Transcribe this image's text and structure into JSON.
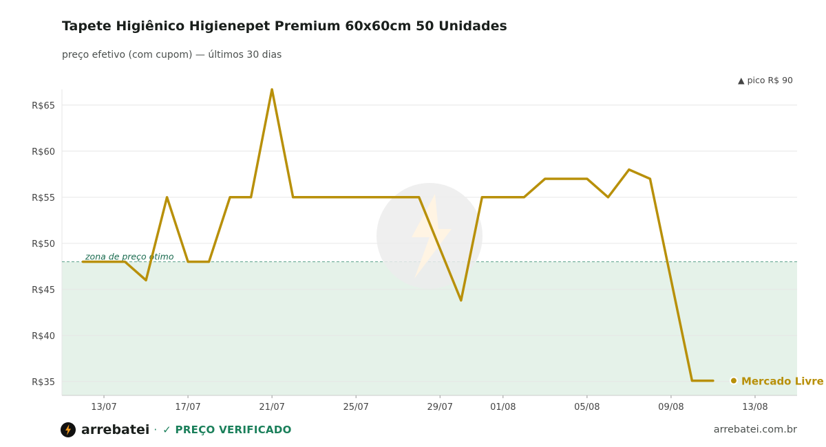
{
  "header": {
    "title": "Tapete Higiênico Higienepet Premium 60x60cm 50 Unidades",
    "subtitle": "preço efetivo (com cupom) — últimos 30 dias"
  },
  "peak_note": "▲ pico R$ 90",
  "footer": {
    "brand": "arrebatei",
    "separator": "·",
    "verified": "✓ PREÇO VERIFICADO",
    "domain": "arrebatei.com.br"
  },
  "colors": {
    "line": "#b8900a",
    "zone_fill": "#e5f2e9",
    "zone_line": "#5aa08a",
    "zone_text": "#1a6b4f",
    "verified": "#1a7f5a"
  },
  "chart_data": {
    "type": "line",
    "title": "Tapete Higiênico Higienepet Premium 60x60cm 50 Unidades",
    "subtitle": "preço efetivo (com cupom) — últimos 30 dias",
    "xlabel": "",
    "ylabel": "",
    "x_ticks": [
      "13/07",
      "17/07",
      "21/07",
      "25/07",
      "29/07",
      "01/08",
      "05/08",
      "09/08",
      "13/08"
    ],
    "x_tick_dates": [
      "2025-07-13",
      "2025-07-17",
      "2025-07-21",
      "2025-07-25",
      "2025-07-29",
      "2025-08-01",
      "2025-08-05",
      "2025-08-09",
      "2025-08-13"
    ],
    "xlim": [
      "2025-07-11",
      "2025-08-15"
    ],
    "y_ticks": [
      35,
      40,
      45,
      50,
      55,
      60,
      65
    ],
    "y_tick_labels": [
      "R$35",
      "R$40",
      "R$45",
      "R$50",
      "R$55",
      "R$60",
      "R$65"
    ],
    "ylim": [
      33.5,
      66.7
    ],
    "grid": true,
    "zone": {
      "label": "zona de preço ótimo",
      "threshold": 48
    },
    "series": [
      {
        "name": "Mercado Livre",
        "points": [
          [
            "2025-07-12",
            48
          ],
          [
            "2025-07-13",
            48
          ],
          [
            "2025-07-14",
            48
          ],
          [
            "2025-07-15",
            46
          ],
          [
            "2025-07-16",
            55
          ],
          [
            "2025-07-17",
            48
          ],
          [
            "2025-07-18",
            48
          ],
          [
            "2025-07-19",
            55
          ],
          [
            "2025-07-20",
            55
          ],
          [
            "2025-07-21",
            66.7
          ],
          [
            "2025-07-22",
            55
          ],
          [
            "2025-07-23",
            55
          ],
          [
            "2025-07-24",
            55
          ],
          [
            "2025-07-25",
            55
          ],
          [
            "2025-07-26",
            55
          ],
          [
            "2025-07-27",
            55
          ],
          [
            "2025-07-28",
            55
          ],
          [
            "2025-07-30",
            43.8
          ],
          [
            "2025-07-31",
            55
          ],
          [
            "2025-08-01",
            55
          ],
          [
            "2025-08-02",
            55
          ],
          [
            "2025-08-03",
            57
          ],
          [
            "2025-08-04",
            57
          ],
          [
            "2025-08-05",
            57
          ],
          [
            "2025-08-06",
            55
          ],
          [
            "2025-08-07",
            58
          ],
          [
            "2025-08-08",
            57
          ],
          [
            "2025-08-10",
            35.1
          ],
          [
            "2025-08-11",
            35.1
          ]
        ]
      }
    ]
  }
}
